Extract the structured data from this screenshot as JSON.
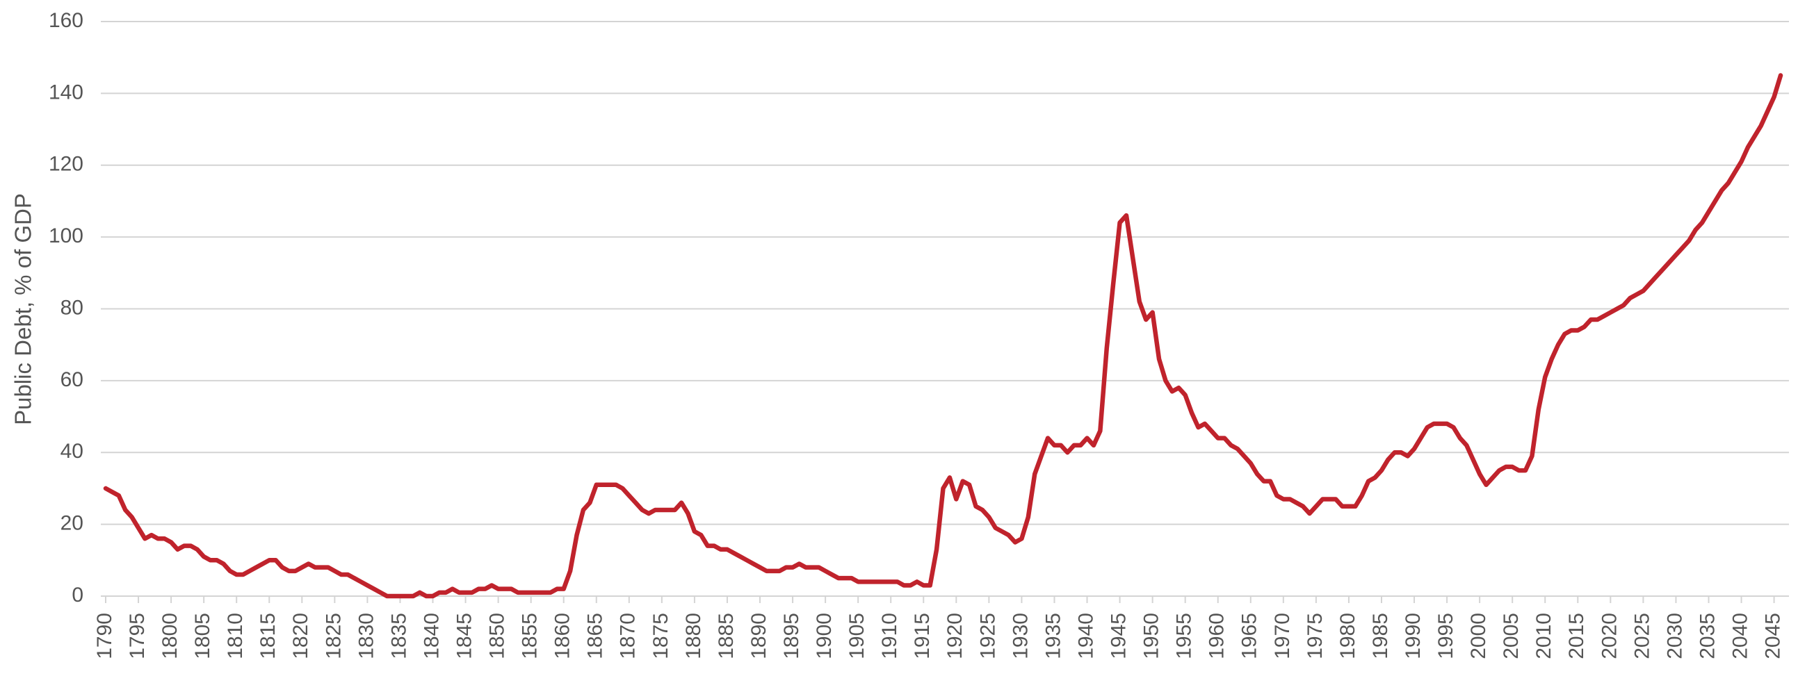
{
  "chart_data": {
    "type": "line",
    "y_label": "Public Debt, % of GDP",
    "x": [
      1790,
      1791,
      1792,
      1793,
      1794,
      1795,
      1796,
      1797,
      1798,
      1799,
      1800,
      1801,
      1802,
      1803,
      1804,
      1805,
      1806,
      1807,
      1808,
      1809,
      1810,
      1811,
      1812,
      1813,
      1814,
      1815,
      1816,
      1817,
      1818,
      1819,
      1820,
      1821,
      1822,
      1823,
      1824,
      1825,
      1826,
      1827,
      1828,
      1829,
      1830,
      1831,
      1832,
      1833,
      1834,
      1835,
      1836,
      1837,
      1838,
      1839,
      1840,
      1841,
      1842,
      1843,
      1844,
      1845,
      1846,
      1847,
      1848,
      1849,
      1850,
      1851,
      1852,
      1853,
      1854,
      1855,
      1856,
      1857,
      1858,
      1859,
      1860,
      1861,
      1862,
      1863,
      1864,
      1865,
      1866,
      1867,
      1868,
      1869,
      1870,
      1871,
      1872,
      1873,
      1874,
      1875,
      1876,
      1877,
      1878,
      1879,
      1880,
      1881,
      1882,
      1883,
      1884,
      1885,
      1886,
      1887,
      1888,
      1889,
      1890,
      1891,
      1892,
      1893,
      1894,
      1895,
      1896,
      1897,
      1898,
      1899,
      1900,
      1901,
      1902,
      1903,
      1904,
      1905,
      1906,
      1907,
      1908,
      1909,
      1910,
      1911,
      1912,
      1913,
      1914,
      1915,
      1916,
      1917,
      1918,
      1919,
      1920,
      1921,
      1922,
      1923,
      1924,
      1925,
      1926,
      1927,
      1928,
      1929,
      1930,
      1931,
      1932,
      1933,
      1934,
      1935,
      1936,
      1937,
      1938,
      1939,
      1940,
      1941,
      1942,
      1943,
      1944,
      1945,
      1946,
      1947,
      1948,
      1949,
      1950,
      1951,
      1952,
      1953,
      1954,
      1955,
      1956,
      1957,
      1958,
      1959,
      1960,
      1961,
      1962,
      1963,
      1964,
      1965,
      1966,
      1967,
      1968,
      1969,
      1970,
      1971,
      1972,
      1973,
      1974,
      1975,
      1976,
      1977,
      1978,
      1979,
      1980,
      1981,
      1982,
      1983,
      1984,
      1985,
      1986,
      1987,
      1988,
      1989,
      1990,
      1991,
      1992,
      1993,
      1994,
      1995,
      1996,
      1997,
      1998,
      1999,
      2000,
      2001,
      2002,
      2003,
      2004,
      2005,
      2006,
      2007,
      2008,
      2009,
      2010,
      2011,
      2012,
      2013,
      2014,
      2015,
      2016,
      2017,
      2018,
      2019,
      2020,
      2021,
      2022,
      2023,
      2024,
      2025,
      2026,
      2027,
      2028,
      2029,
      2030,
      2031,
      2032,
      2033,
      2034,
      2035,
      2036,
      2037,
      2038,
      2039,
      2040,
      2041,
      2042,
      2043,
      2044,
      2045,
      2046
    ],
    "series": [
      {
        "name": "Public Debt",
        "color": "#c0232c",
        "values": [
          30,
          29,
          28,
          24,
          22,
          19,
          16,
          17,
          16,
          16,
          15,
          13,
          14,
          14,
          13,
          11,
          10,
          10,
          9,
          7,
          6,
          6,
          7,
          8,
          9,
          10,
          10,
          8,
          7,
          7,
          8,
          9,
          8,
          8,
          8,
          7,
          6,
          6,
          5,
          4,
          3,
          2,
          1,
          0,
          0,
          0,
          0,
          0,
          1,
          0,
          0,
          1,
          1,
          2,
          1,
          1,
          1,
          2,
          2,
          3,
          2,
          2,
          2,
          1,
          1,
          1,
          1,
          1,
          1,
          2,
          2,
          7,
          17,
          24,
          26,
          31,
          31,
          31,
          31,
          30,
          28,
          26,
          24,
          23,
          24,
          24,
          24,
          24,
          26,
          23,
          18,
          17,
          14,
          14,
          13,
          13,
          12,
          11,
          10,
          9,
          8,
          7,
          7,
          7,
          8,
          8,
          9,
          8,
          8,
          8,
          7,
          6,
          5,
          5,
          5,
          4,
          4,
          4,
          4,
          4,
          4,
          4,
          3,
          3,
          4,
          3,
          3,
          13,
          30,
          33,
          27,
          32,
          31,
          25,
          24,
          22,
          19,
          18,
          17,
          15,
          16,
          22,
          34,
          39,
          44,
          42,
          42,
          40,
          42,
          42,
          44,
          42,
          46,
          69,
          87,
          104,
          106,
          94,
          82,
          77,
          79,
          66,
          60,
          57,
          58,
          56,
          51,
          47,
          48,
          46,
          44,
          44,
          42,
          41,
          39,
          37,
          34,
          32,
          32,
          28,
          27,
          27,
          26,
          25,
          23,
          25,
          27,
          27,
          27,
          25,
          25,
          25,
          28,
          32,
          33,
          35,
          38,
          40,
          40,
          39,
          41,
          44,
          47,
          48,
          48,
          48,
          47,
          44,
          42,
          38,
          34,
          31,
          33,
          35,
          36,
          36,
          35,
          35,
          39,
          52,
          61,
          66,
          70,
          73,
          74,
          74,
          75,
          77,
          77,
          78,
          79,
          80,
          81,
          83,
          84,
          85,
          87,
          89,
          91,
          93,
          95,
          97,
          99,
          102,
          104,
          107,
          110,
          113,
          115,
          118,
          121,
          125,
          128,
          131,
          135,
          139,
          145
        ]
      }
    ],
    "xlim": [
      1790,
      2046
    ],
    "xticks": [
      1790,
      1795,
      1800,
      1805,
      1810,
      1815,
      1820,
      1825,
      1830,
      1835,
      1840,
      1845,
      1850,
      1855,
      1860,
      1865,
      1870,
      1875,
      1880,
      1885,
      1890,
      1895,
      1900,
      1905,
      1910,
      1915,
      1920,
      1925,
      1930,
      1935,
      1940,
      1945,
      1950,
      1955,
      1960,
      1965,
      1970,
      1975,
      1980,
      1985,
      1990,
      1995,
      2000,
      2005,
      2010,
      2015,
      2020,
      2025,
      2030,
      2035,
      2040,
      2045
    ],
    "ylim": [
      0,
      160
    ],
    "yticks": [
      0,
      20,
      40,
      60,
      80,
      100,
      120,
      140,
      160
    ],
    "grid": true
  }
}
